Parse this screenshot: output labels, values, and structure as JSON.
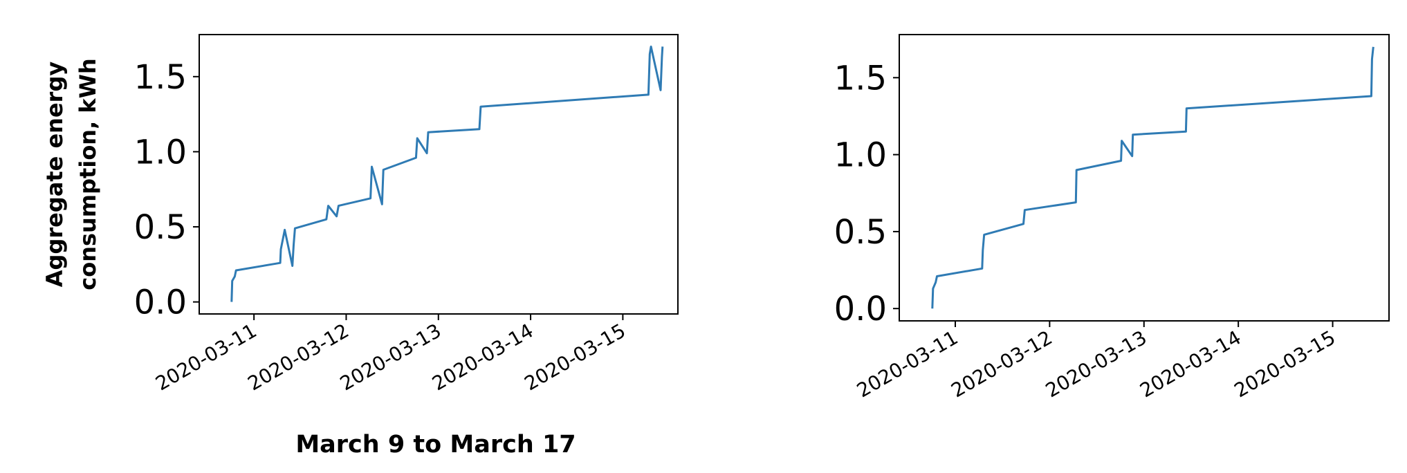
{
  "chart_data": [
    {
      "type": "line",
      "xlabel": "March 9 to March 17",
      "ylabel_lines": [
        "Aggregate energy",
        "consumption, kWh"
      ],
      "xlim": [
        "2020-03-10 09:45",
        "2020-03-15 14:20"
      ],
      "ylim": [
        -0.08,
        1.78
      ],
      "y_ticks": [
        "0.0",
        "0.5",
        "1.0",
        "1.5"
      ],
      "x_ticks": [
        "2020-03-11",
        "2020-03-12",
        "2020-03-13",
        "2020-03-14",
        "2020-03-15"
      ],
      "grid": false,
      "color": "#2f7bb4",
      "series": [
        {
          "x": [
            "2020-03-10 18:10",
            "2020-03-10 18:20",
            "2020-03-10 19:00",
            "2020-03-10 19:20",
            "2020-03-11 06:50",
            "2020-03-11 07:00",
            "2020-03-11 08:00",
            "2020-03-11 10:00",
            "2020-03-11 10:20",
            "2020-03-11 10:40",
            "2020-03-11 18:50",
            "2020-03-11 19:20",
            "2020-03-11 21:30",
            "2020-03-11 22:00",
            "2020-03-12 06:20",
            "2020-03-12 06:40",
            "2020-03-12 09:20",
            "2020-03-12 09:40",
            "2020-03-12 18:10",
            "2020-03-12 18:30",
            "2020-03-12 21:00",
            "2020-03-12 21:20",
            "2020-03-13 10:40",
            "2020-03-13 11:00",
            "2020-03-15 06:40",
            "2020-03-15 07:00",
            "2020-03-15 07:20",
            "2020-03-15 09:50",
            "2020-03-15 10:10",
            "2020-03-15 10:20"
          ],
          "y": [
            0.0,
            0.14,
            0.17,
            0.21,
            0.26,
            0.35,
            0.48,
            0.24,
            0.38,
            0.49,
            0.55,
            0.64,
            0.57,
            0.64,
            0.69,
            0.9,
            0.65,
            0.88,
            0.96,
            1.09,
            0.99,
            1.13,
            1.15,
            1.3,
            1.38,
            1.65,
            1.7,
            1.41,
            1.63,
            1.7
          ]
        }
      ]
    },
    {
      "type": "line",
      "xlim": [
        "2020-03-10 09:45",
        "2020-03-15 14:20"
      ],
      "ylim": [
        -0.08,
        1.78
      ],
      "y_ticks": [
        "0.0",
        "0.5",
        "1.0",
        "1.5"
      ],
      "x_ticks": [
        "2020-03-11",
        "2020-03-12",
        "2020-03-13",
        "2020-03-14",
        "2020-03-15"
      ],
      "grid": false,
      "color": "#2f7bb4",
      "series": [
        {
          "x": [
            "2020-03-10 18:10",
            "2020-03-10 18:20",
            "2020-03-10 19:00",
            "2020-03-10 19:20",
            "2020-03-11 06:50",
            "2020-03-11 07:00",
            "2020-03-11 07:20",
            "2020-03-11 17:20",
            "2020-03-11 17:40",
            "2020-03-12 06:40",
            "2020-03-12 06:50",
            "2020-03-12 18:10",
            "2020-03-12 18:20",
            "2020-03-12 21:00",
            "2020-03-12 21:10",
            "2020-03-13 10:40",
            "2020-03-13 10:50",
            "2020-03-15 09:50",
            "2020-03-15 10:00",
            "2020-03-15 10:20"
          ],
          "y": [
            0.0,
            0.13,
            0.17,
            0.21,
            0.26,
            0.38,
            0.48,
            0.55,
            0.64,
            0.69,
            0.9,
            0.96,
            1.09,
            0.99,
            1.13,
            1.15,
            1.3,
            1.38,
            1.62,
            1.7
          ]
        }
      ]
    }
  ]
}
